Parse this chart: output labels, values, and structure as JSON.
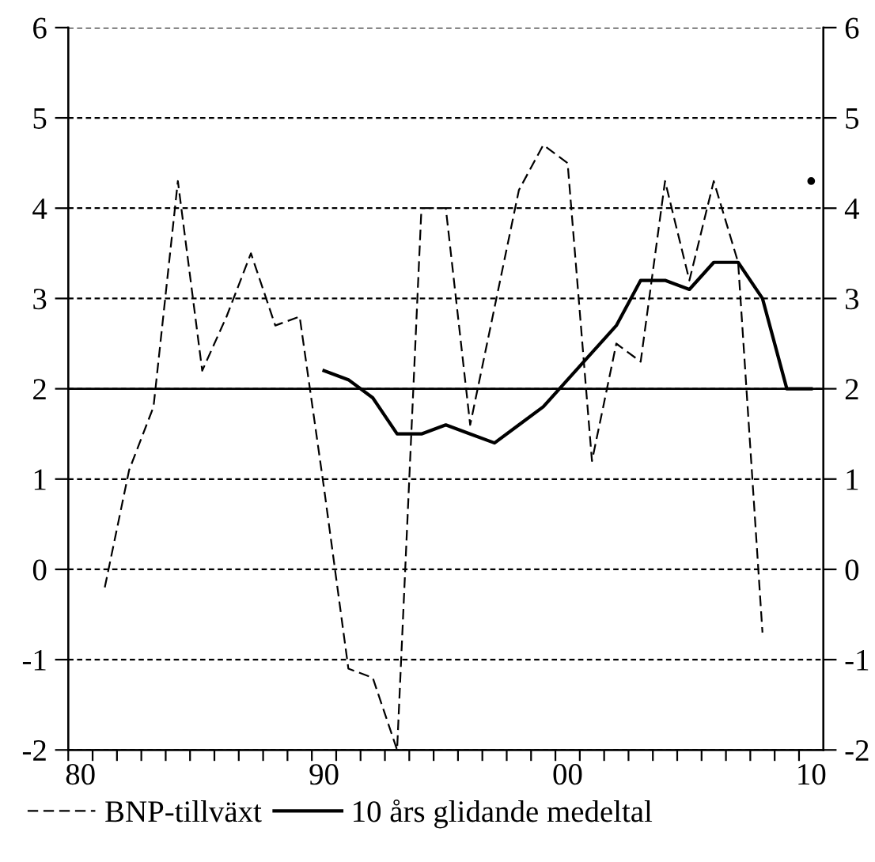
{
  "chart_data": {
    "type": "line",
    "categories": [
      "80",
      null,
      null,
      null,
      null,
      null,
      null,
      null,
      null,
      null,
      "90",
      null,
      null,
      null,
      null,
      null,
      null,
      null,
      null,
      null,
      "00",
      null,
      null,
      null,
      null,
      null,
      null,
      null,
      null,
      null,
      "10"
    ],
    "ylim": [
      -2,
      6
    ],
    "yticks": [
      -2,
      -1,
      0,
      1,
      2,
      3,
      4,
      5,
      6
    ],
    "y2lim": [
      -2,
      6
    ],
    "y2ticks": [
      -2,
      -1,
      0,
      1,
      2,
      3,
      4,
      5,
      6
    ],
    "grid": "y",
    "legend": "bottom",
    "ref_lines": [
      {
        "axis": "y",
        "value": 2,
        "color": "#000000",
        "line_style": "solid"
      }
    ],
    "series": [
      {
        "name": "BNP-tillväxt",
        "color": "#000000",
        "line_style": "dashed",
        "values": [
          null,
          -0.2,
          1.1,
          1.8,
          4.3,
          2.2,
          2.8,
          3.5,
          2.7,
          2.8,
          0.9,
          -1.1,
          -1.2,
          -2.0,
          4.0,
          4.0,
          1.6,
          2.9,
          4.2,
          4.7,
          4.5,
          1.2,
          2.5,
          2.3,
          4.3,
          3.2,
          4.3,
          3.4,
          -0.7,
          null,
          4.3
        ]
      },
      {
        "name": "10 års glidande medeltal",
        "color": "#000000",
        "line_style": "solid",
        "values": [
          null,
          null,
          null,
          null,
          null,
          null,
          null,
          null,
          null,
          null,
          2.2,
          2.1,
          1.9,
          1.5,
          1.5,
          1.6,
          1.5,
          1.4,
          1.6,
          1.8,
          2.1,
          2.4,
          2.7,
          3.2,
          3.2,
          3.1,
          3.4,
          3.4,
          3.0,
          2.0,
          2.0
        ]
      }
    ]
  }
}
